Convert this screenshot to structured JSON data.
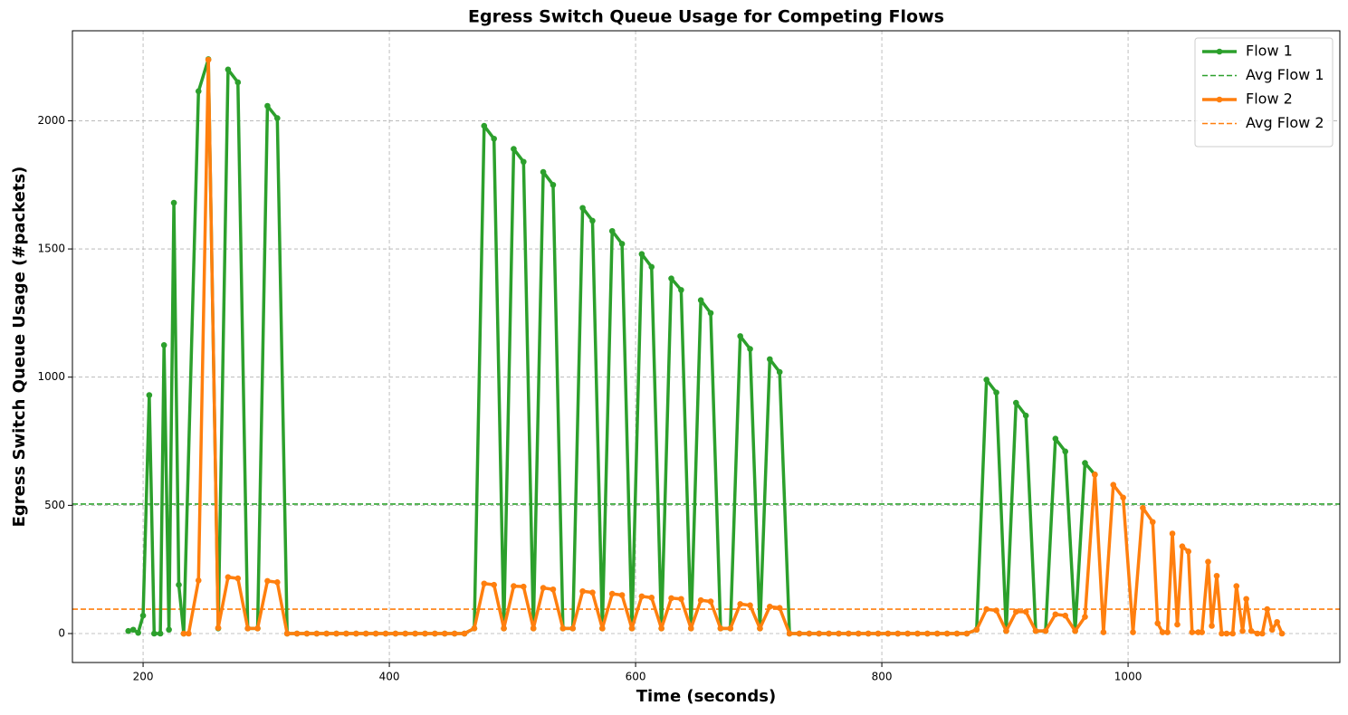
{
  "chart_data": {
    "type": "line",
    "title": "Egress Switch Queue Usage for Competing Flows",
    "x_label": "Time (seconds)",
    "y_label": "Egress Switch Queue Usage (#packets)",
    "xlim": [
      142.6,
      1172
    ],
    "ylim": [
      -113,
      2351
    ],
    "xticks": [
      200,
      400,
      600,
      800,
      1000
    ],
    "yticks": [
      0,
      500,
      1000,
      1500,
      2000
    ],
    "grid": true,
    "legend": "upper right",
    "series": [
      {
        "name": "Flow 1",
        "color": "#2ca02c",
        "x": [
          188,
          192,
          196,
          200,
          205,
          209,
          214,
          217,
          221,
          225,
          229,
          233,
          245,
          253,
          261,
          269,
          277,
          285,
          293,
          301,
          309,
          317,
          325,
          333,
          341,
          349,
          357,
          365,
          373,
          381,
          389,
          397,
          405,
          413,
          421,
          429,
          437,
          445,
          453,
          461,
          469,
          477,
          485,
          493,
          501,
          509,
          517,
          525,
          533,
          541,
          549,
          557,
          565,
          573,
          581,
          589,
          597,
          605,
          613,
          621,
          629,
          637,
          645,
          653,
          661,
          669,
          677,
          685,
          693,
          701,
          709,
          717,
          725,
          733,
          741,
          749,
          757,
          765,
          773,
          781,
          789,
          797,
          805,
          813,
          821,
          829,
          837,
          845,
          853,
          861,
          869,
          877,
          885,
          893,
          901,
          909,
          917,
          925,
          933,
          941,
          949,
          957,
          965,
          973
        ],
        "values": [
          10,
          15,
          3,
          70,
          930,
          0,
          0,
          1125,
          15,
          1680,
          190,
          0,
          2115,
          2240,
          20,
          2200,
          2150,
          20,
          20,
          2058,
          2010,
          0,
          0,
          0,
          0,
          0,
          0,
          0,
          0,
          0,
          0,
          0,
          0,
          0,
          0,
          0,
          0,
          0,
          0,
          0,
          20,
          1980,
          1930,
          20,
          1890,
          1840,
          20,
          1800,
          1750,
          20,
          20,
          1660,
          1610,
          20,
          1570,
          1520,
          20,
          1480,
          1430,
          20,
          1385,
          1340,
          20,
          1300,
          1250,
          20,
          20,
          1160,
          1110,
          20,
          1070,
          1020,
          0,
          0,
          0,
          0,
          0,
          0,
          0,
          0,
          0,
          0,
          0,
          0,
          0,
          0,
          0,
          0,
          0,
          0,
          0,
          15,
          990,
          940,
          10,
          900,
          850,
          10,
          10,
          760,
          710,
          10,
          665,
          620
        ]
      },
      {
        "name": "Flow 2",
        "color": "#ff7f0e",
        "x": [
          233,
          237,
          245,
          253,
          261,
          269,
          277,
          285,
          293,
          301,
          309,
          317,
          325,
          333,
          341,
          349,
          357,
          365,
          373,
          381,
          389,
          397,
          405,
          413,
          421,
          429,
          437,
          445,
          453,
          461,
          469,
          477,
          485,
          493,
          501,
          509,
          517,
          525,
          533,
          541,
          549,
          557,
          565,
          573,
          581,
          589,
          597,
          605,
          613,
          621,
          629,
          637,
          645,
          653,
          661,
          669,
          677,
          685,
          693,
          701,
          709,
          717,
          725,
          733,
          741,
          749,
          757,
          765,
          773,
          781,
          789,
          797,
          805,
          813,
          821,
          829,
          837,
          845,
          853,
          861,
          869,
          877,
          885,
          893,
          901,
          909,
          917,
          925,
          933,
          941,
          949,
          957,
          965,
          973,
          980,
          988,
          996,
          1004,
          1012,
          1020,
          1024,
          1028,
          1032,
          1036,
          1040,
          1044,
          1049,
          1052,
          1057,
          1060,
          1065,
          1068,
          1072,
          1076,
          1080,
          1085,
          1088,
          1093,
          1096,
          1100,
          1105,
          1109,
          1113,
          1117,
          1121,
          1125
        ],
        "values": [
          0,
          0,
          207,
          2238,
          22,
          220,
          215,
          20,
          20,
          205,
          200,
          0,
          0,
          0,
          0,
          0,
          0,
          0,
          0,
          0,
          0,
          0,
          0,
          0,
          0,
          0,
          0,
          0,
          0,
          0,
          20,
          195,
          190,
          20,
          185,
          183,
          20,
          178,
          172,
          20,
          20,
          165,
          160,
          20,
          155,
          150,
          20,
          145,
          140,
          20,
          138,
          135,
          20,
          130,
          125,
          20,
          20,
          115,
          110,
          20,
          105,
          100,
          0,
          0,
          0,
          0,
          0,
          0,
          0,
          0,
          0,
          0,
          0,
          0,
          0,
          0,
          0,
          0,
          0,
          0,
          0,
          15,
          95,
          90,
          10,
          85,
          85,
          10,
          10,
          75,
          70,
          10,
          65,
          620,
          5,
          580,
          530,
          5,
          490,
          435,
          40,
          5,
          5,
          390,
          35,
          340,
          320,
          5,
          5,
          5,
          280,
          30,
          225,
          0,
          0,
          0,
          185,
          10,
          135,
          10,
          0,
          0,
          95,
          15,
          45,
          0
        ]
      }
    ],
    "reference_lines": [
      {
        "name": "Avg Flow 1",
        "color": "#2ca02c",
        "value": 505
      },
      {
        "name": "Avg Flow 2",
        "color": "#ff7f0e",
        "value": 95
      }
    ]
  }
}
